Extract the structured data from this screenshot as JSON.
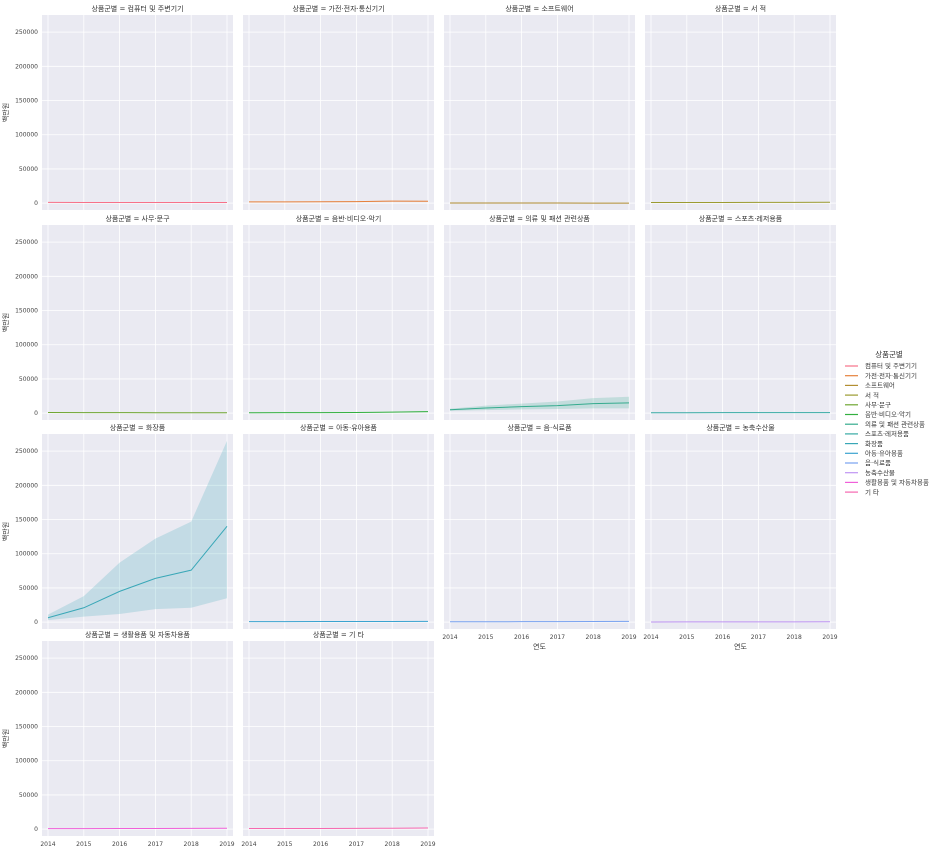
{
  "chart_data": {
    "type": "line",
    "kind": "facet-grid relplot with confidence bands",
    "facet_variable": "상품군별",
    "title_template": "상품군별 = {category}",
    "xlabel": "연도",
    "ylabel": "백만원",
    "x": [
      2014,
      2015,
      2016,
      2017,
      2018,
      2019
    ],
    "xticks": [
      "2014",
      "2015",
      "2016",
      "2017",
      "2018",
      "2019"
    ],
    "ylim": [
      -10000,
      275000
    ],
    "yticks": [
      "0",
      "50000",
      "100000",
      "150000",
      "200000",
      "250000"
    ],
    "legend": {
      "title": "상품군별",
      "placement": "right-center"
    },
    "series": [
      {
        "name": "컴퓨터 및 주변기기",
        "color": "#f77189",
        "values": [
          1100,
          1050,
          1000,
          950,
          1000,
          1000
        ],
        "lower": [
          800,
          800,
          750,
          700,
          700,
          700
        ],
        "upper": [
          1400,
          1300,
          1250,
          1200,
          1300,
          1300
        ]
      },
      {
        "name": "가전·전자·통신기기",
        "color": "#e6813d",
        "values": [
          1800,
          1900,
          2000,
          2200,
          3000,
          2800
        ],
        "lower": [
          1300,
          1400,
          1500,
          1600,
          2200,
          2100
        ],
        "upper": [
          2300,
          2400,
          2500,
          2800,
          3800,
          3500
        ]
      },
      {
        "name": "소프트웨어",
        "color": "#b28e31",
        "values": [
          200,
          200,
          150,
          150,
          100,
          100
        ],
        "lower": [
          100,
          100,
          80,
          80,
          50,
          50
        ],
        "upper": [
          300,
          300,
          250,
          250,
          200,
          200
        ]
      },
      {
        "name": "서 적",
        "color": "#9b9b31",
        "values": [
          900,
          950,
          1000,
          1100,
          1200,
          1300
        ],
        "lower": [
          700,
          750,
          800,
          850,
          900,
          1000
        ],
        "upper": [
          1100,
          1150,
          1200,
          1350,
          1500,
          1600
        ]
      },
      {
        "name": "사무·문구",
        "color": "#6fa632",
        "values": [
          1000,
          800,
          700,
          650,
          600,
          600
        ],
        "lower": [
          800,
          600,
          500,
          450,
          400,
          400
        ],
        "upper": [
          1200,
          1000,
          900,
          850,
          800,
          800
        ]
      },
      {
        "name": "음반·비디오·악기",
        "color": "#33b040",
        "values": [
          600,
          700,
          800,
          1000,
          1500,
          2200
        ],
        "lower": [
          400,
          500,
          600,
          700,
          1000,
          1500
        ],
        "upper": [
          800,
          900,
          1000,
          1300,
          2000,
          2900
        ]
      },
      {
        "name": "의류 및 패션 관련상품",
        "color": "#35ab8e",
        "values": [
          5000,
          7500,
          9500,
          11000,
          14000,
          15000
        ],
        "lower": [
          3500,
          4500,
          5500,
          6000,
          7000,
          7000
        ],
        "upper": [
          6500,
          11000,
          14000,
          17000,
          22000,
          24000
        ]
      },
      {
        "name": "스포츠·레저용품",
        "color": "#37aaa4",
        "values": [
          600,
          650,
          700,
          700,
          750,
          800
        ],
        "lower": [
          400,
          450,
          500,
          500,
          550,
          550
        ],
        "upper": [
          800,
          850,
          900,
          900,
          950,
          1050
        ]
      },
      {
        "name": "화장품",
        "color": "#39a7b7",
        "values": [
          6500,
          21000,
          45000,
          64000,
          76000,
          140000
        ],
        "lower": [
          3000,
          8000,
          12000,
          19000,
          21000,
          35000
        ],
        "upper": [
          11000,
          38000,
          87000,
          122000,
          147000,
          265000
        ]
      },
      {
        "name": "아동·유아용품",
        "color": "#3ba3d0",
        "values": [
          700,
          800,
          900,
          1000,
          1000,
          1100
        ],
        "lower": [
          500,
          600,
          700,
          750,
          750,
          800
        ],
        "upper": [
          900,
          1000,
          1100,
          1250,
          1250,
          1400
        ]
      },
      {
        "name": "음·식료품",
        "color": "#79a2f0",
        "values": [
          600,
          650,
          700,
          800,
          1000,
          1200
        ],
        "lower": [
          400,
          450,
          500,
          550,
          700,
          800
        ],
        "upper": [
          800,
          850,
          900,
          1050,
          1300,
          1600
        ]
      },
      {
        "name": "농축수산물",
        "color": "#bf95f3",
        "values": [
          300,
          350,
          400,
          450,
          500,
          600
        ],
        "lower": [
          200,
          250,
          300,
          300,
          350,
          400
        ],
        "upper": [
          400,
          450,
          500,
          600,
          650,
          800
        ]
      },
      {
        "name": "생활용품 및 자동차용품",
        "color": "#f060d9",
        "values": [
          800,
          850,
          900,
          1000,
          1100,
          1300
        ],
        "lower": [
          600,
          650,
          700,
          750,
          800,
          950
        ],
        "upper": [
          1000,
          1050,
          1100,
          1250,
          1400,
          1650
        ]
      },
      {
        "name": "기 타",
        "color": "#f668b0",
        "values": [
          900,
          950,
          1000,
          1200,
          1400,
          1700
        ],
        "lower": [
          700,
          750,
          800,
          900,
          1050,
          1250
        ],
        "upper": [
          1100,
          1150,
          1200,
          1500,
          1750,
          2150
        ]
      }
    ]
  }
}
